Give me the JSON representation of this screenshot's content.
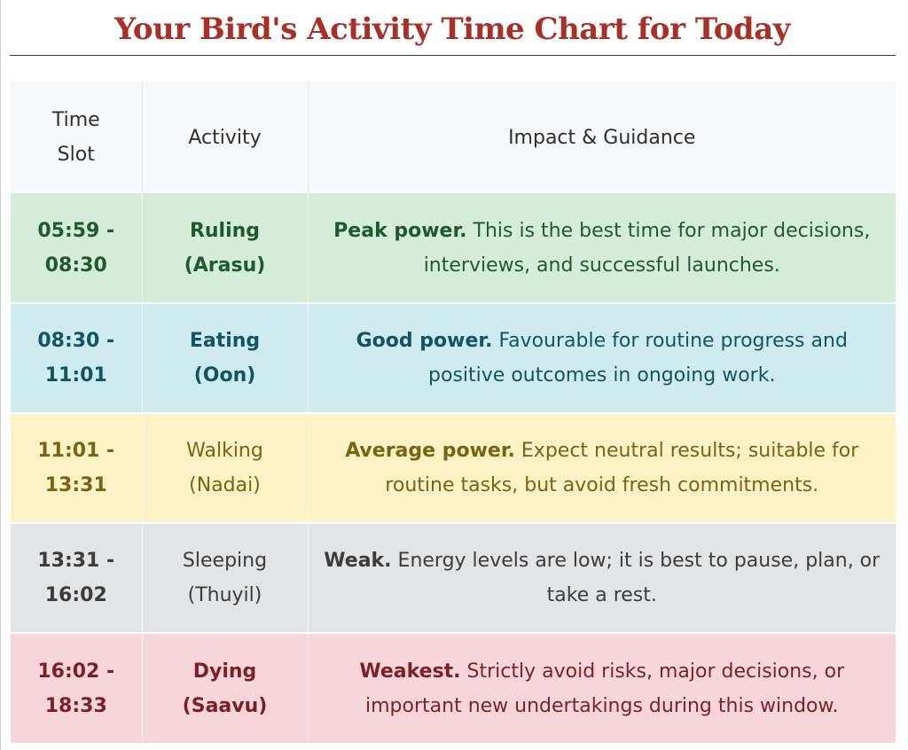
{
  "page_title": "Your Bird's Activity Time Chart for Today",
  "table": {
    "headers": {
      "time_line1": "Time",
      "time_line2": "Slot",
      "activity": "Activity",
      "impact": "Impact & Guidance"
    },
    "rows": [
      {
        "id": "ruling",
        "time_line1": "05:59 -",
        "time_line2": "08:30",
        "activity_line1": "Ruling",
        "activity_line2": "(Arasu)",
        "impact_lead": "Peak power.",
        "impact_text": " This is the best time for major decisions, interviews, and successful launches.",
        "color": "#d5ecd9"
      },
      {
        "id": "eating",
        "time_line1": "08:30 -",
        "time_line2": "11:01",
        "activity_line1": "Eating",
        "activity_line2": "(Oon)",
        "impact_lead": "Good power.",
        "impact_text": " Favourable for routine progress and positive outcomes in ongoing work.",
        "color": "#d0ebf0"
      },
      {
        "id": "walking",
        "time_line1": "11:01 -",
        "time_line2": "13:31",
        "activity_line1": "Walking",
        "activity_line2": "(Nadai)",
        "impact_lead": "Average power.",
        "impact_text": " Expect neutral results; suitable for routine tasks, but avoid fresh commitments.",
        "color": "#fdf1c6"
      },
      {
        "id": "sleeping",
        "time_line1": "13:31 -",
        "time_line2": "16:02",
        "activity_line1": "Sleeping",
        "activity_line2": "(Thuyil)",
        "impact_lead": "Weak.",
        "impact_text": " Energy levels are low; it is best to pause, plan, or take a rest.",
        "color": "#e3e4e5"
      },
      {
        "id": "dying",
        "time_line1": "16:02 -",
        "time_line2": "18:33",
        "activity_line1": "Dying",
        "activity_line2": "(Saavu)",
        "impact_lead": "Weakest.",
        "impact_text": " Strictly avoid risks, major decisions, or important new undertakings during this window.",
        "color": "#f7d6db"
      }
    ]
  }
}
